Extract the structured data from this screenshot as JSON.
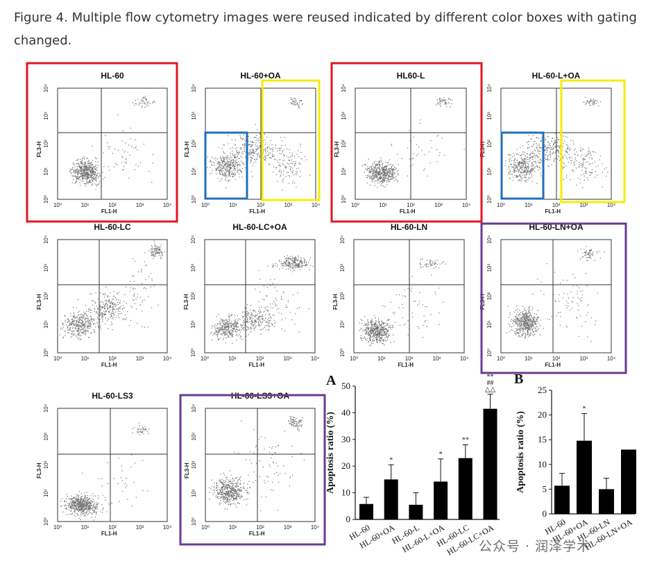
{
  "caption": "Figure 4. Multiple flow cytometry images were reused indicated by different color boxes with gating changed.",
  "flow_panels": [
    {
      "title": "HL-60",
      "xlabel": "FL1-H",
      "ylabel": "FL3-H"
    },
    {
      "title": "HL-60+OA",
      "xlabel": "FL1-H",
      "ylabel": "FL3-H"
    },
    {
      "title": "HL60-L",
      "xlabel": "FL1-H",
      "ylabel": "FL3-H"
    },
    {
      "title": "HL-60-L+OA",
      "xlabel": "FL1-H",
      "ylabel": "FL3-H"
    },
    {
      "title": "HL-60-LC",
      "xlabel": "FL1-H",
      "ylabel": "FL3-H"
    },
    {
      "title": "HL-60-LC+OA",
      "xlabel": "FL1-H",
      "ylabel": "FL3-H"
    },
    {
      "title": "HL-60-LN",
      "xlabel": "FL1-H",
      "ylabel": "FL3-H"
    },
    {
      "title": "HL-60-LN+OA",
      "xlabel": "FL1-H",
      "ylabel": "FL3-H"
    },
    {
      "title": "HL-60-LS3",
      "xlabel": "FL1-H",
      "ylabel": "FL3-H"
    },
    {
      "title": "HL-60-LS3+OA",
      "xlabel": "FL1-H",
      "ylabel": "FL3-H"
    }
  ],
  "axis_ticks": {
    "x": [
      "10⁰",
      "10¹",
      "10²",
      "10³",
      "10⁴"
    ],
    "y": [
      "10⁰",
      "10¹",
      "10²",
      "10³",
      "10⁴"
    ]
  },
  "highlight_colors": {
    "red": "#e8141c",
    "yellow": "#f5ec00",
    "blue": "#1f6fbd",
    "purple": "#6a3a96"
  },
  "chart_data": [
    {
      "label": "A",
      "type": "bar",
      "ylabel": "Apoptosis ratio (%)",
      "ylim": [
        0,
        50
      ],
      "yticks": [
        0,
        10,
        20,
        30,
        40,
        50
      ],
      "categories": [
        "HL-60",
        "HL-60+OA",
        "HL-60-L",
        "HL-60-L+OA",
        "HL-60-LC",
        "HL-60-LC+OA"
      ],
      "values": [
        5.8,
        15,
        5.5,
        14.2,
        23,
        41.5
      ],
      "errors": [
        2.5,
        5.5,
        4.5,
        8.5,
        5,
        5.5
      ],
      "annotations": [
        "",
        "*",
        "",
        "*",
        "**",
        "**\n##\n△△"
      ]
    },
    {
      "label": "B",
      "type": "bar",
      "ylabel": "Apoptosis ratio (%)",
      "ylim": [
        0,
        25
      ],
      "yticks": [
        0,
        5,
        10,
        15,
        20,
        25
      ],
      "categories": [
        "HL-60",
        "HL-60+OA",
        "HL-60-LN",
        "HL-60-LN+OA"
      ],
      "values": [
        5.7,
        14.8,
        5,
        13
      ],
      "errors": [
        2.5,
        5.5,
        2.2,
        0
      ],
      "annotations": [
        "",
        "*",
        "",
        ""
      ]
    }
  ],
  "watermark": "公众号 · 润泽学术"
}
